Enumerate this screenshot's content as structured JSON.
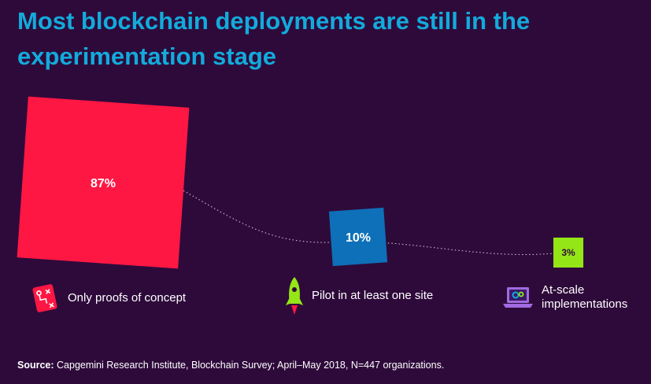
{
  "header": {
    "title": "Most blockchain deployments are still in the experimentation stage"
  },
  "chart_data": {
    "type": "bar",
    "categories": [
      "Only proofs of concept",
      "Pilot in at least one site",
      "At-scale implementations"
    ],
    "values": [
      87,
      10,
      3
    ],
    "value_labels": [
      "87%",
      "10%",
      "3%"
    ],
    "unit": "%",
    "title": "Most blockchain deployments are still in the experimentation stage",
    "colors": [
      "#ff1744",
      "#0d70b8",
      "#95e616"
    ]
  },
  "legend": {
    "items": [
      {
        "label": "Only proofs of concept",
        "icon": "flowchart-icon"
      },
      {
        "label": "Pilot in at least one site",
        "icon": "rocket-icon"
      },
      {
        "label_line1": "At-scale",
        "label_line2": "implementations",
        "icon": "laptop-gears-icon"
      }
    ]
  },
  "source": {
    "prefix": "Source:",
    "text": "Capgemini Research Institute, Blockchain Survey; April–May 2018, N=447 organizations."
  }
}
